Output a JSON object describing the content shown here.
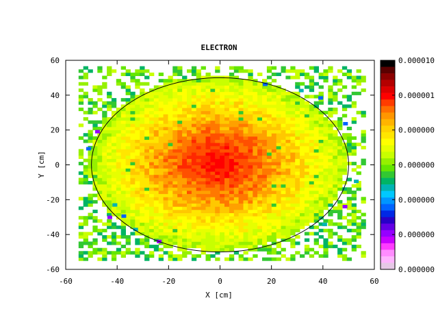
{
  "chart_data": {
    "type": "heatmap",
    "title": "ELECTRON",
    "xlabel": "X [cm]",
    "ylabel": "Y [cm]",
    "xlim": [
      -60,
      60
    ],
    "ylim": [
      -60,
      60
    ],
    "x_ticks": [
      "-60",
      "-40",
      "-20",
      "0",
      "20",
      "40",
      "60"
    ],
    "y_ticks": [
      "60",
      "40",
      "20",
      "0",
      "-20",
      "-40",
      "-60"
    ],
    "colorbar_labels": [
      "0.000010",
      "0.000001",
      "0.000000",
      "0.000000",
      "0.000000",
      "0.000000",
      "0.000000"
    ],
    "colorbar_colors": [
      "#000000",
      "#5a0000",
      "#8c0000",
      "#b40000",
      "#dc0000",
      "#ff0000",
      "#ff3c00",
      "#ff6e00",
      "#ff9600",
      "#ffb400",
      "#ffd200",
      "#ffe600",
      "#ffff00",
      "#e6ff00",
      "#c8ff00",
      "#96f000",
      "#64e600",
      "#32c832",
      "#00b464",
      "#00b4b4",
      "#00c8ff",
      "#0096ff",
      "#0064ff",
      "#0028e6",
      "#2800c8",
      "#6400e6",
      "#9600ff",
      "#c800ff",
      "#ff3cff",
      "#ff8cff",
      "#ffb4ff",
      "#e6c8e6"
    ],
    "distribution": "radially symmetric, peak near (0, 0), data extent x and y from -55 to 55",
    "circle_radius": 50,
    "grid": false
  }
}
